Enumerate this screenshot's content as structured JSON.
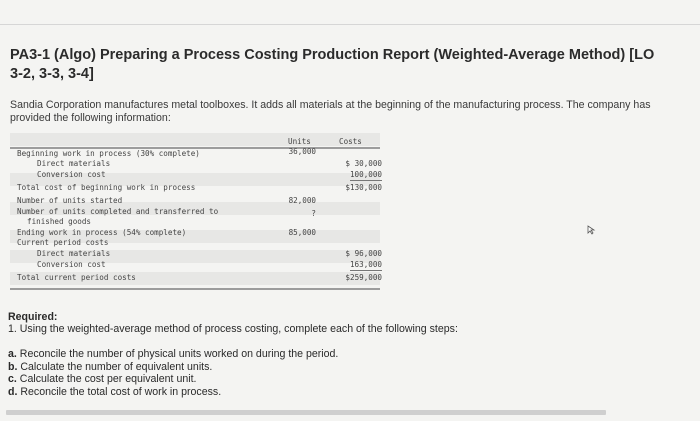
{
  "title": "PA3-1 (Algo) Preparing a Process Costing Production Report (Weighted-Average Method) [LO 3-2, 3-3, 3-4]",
  "intro": "Sandia Corporation manufactures metal toolboxes. It adds all materials at the beginning of the manufacturing process. The company has provided the following information:",
  "table": {
    "col_units": "Units",
    "col_costs": "Costs",
    "rows": [
      {
        "label": "Beginning work in process (30% complete)",
        "units": "36,000",
        "cost": ""
      },
      {
        "label": "Direct materials",
        "units": "",
        "cost": "$ 30,000"
      },
      {
        "label": "Conversion cost",
        "units": "",
        "cost": "100,000"
      },
      {
        "label": "Total cost of beginning work in process",
        "units": "",
        "cost": "$130,000"
      },
      {
        "label": "Number of units started",
        "units": "82,000",
        "cost": ""
      },
      {
        "label": "Number of units completed and transferred to",
        "units": "?",
        "cost": ""
      },
      {
        "label": "finished goods",
        "units": "",
        "cost": ""
      },
      {
        "label": "Ending work in process (54% complete)",
        "units": "85,000",
        "cost": ""
      },
      {
        "label": "Current period costs",
        "units": "",
        "cost": ""
      },
      {
        "label": "Direct materials",
        "units": "",
        "cost": "$ 96,000"
      },
      {
        "label": "Conversion cost",
        "units": "",
        "cost": "163,000"
      },
      {
        "label": "Total current period costs",
        "units": "",
        "cost": "$259,000"
      }
    ]
  },
  "required": {
    "heading": "Required:",
    "instruction": "1. Using the weighted-average method of process costing, complete each of the following steps:",
    "steps": [
      {
        "letter": "a.",
        "text": "Reconcile the number of physical units worked on during the period."
      },
      {
        "letter": "b.",
        "text": "Calculate the number of equivalent units."
      },
      {
        "letter": "c.",
        "text": "Calculate the cost per equivalent unit."
      },
      {
        "letter": "d.",
        "text": "Reconcile the total cost of work in process."
      }
    ]
  }
}
